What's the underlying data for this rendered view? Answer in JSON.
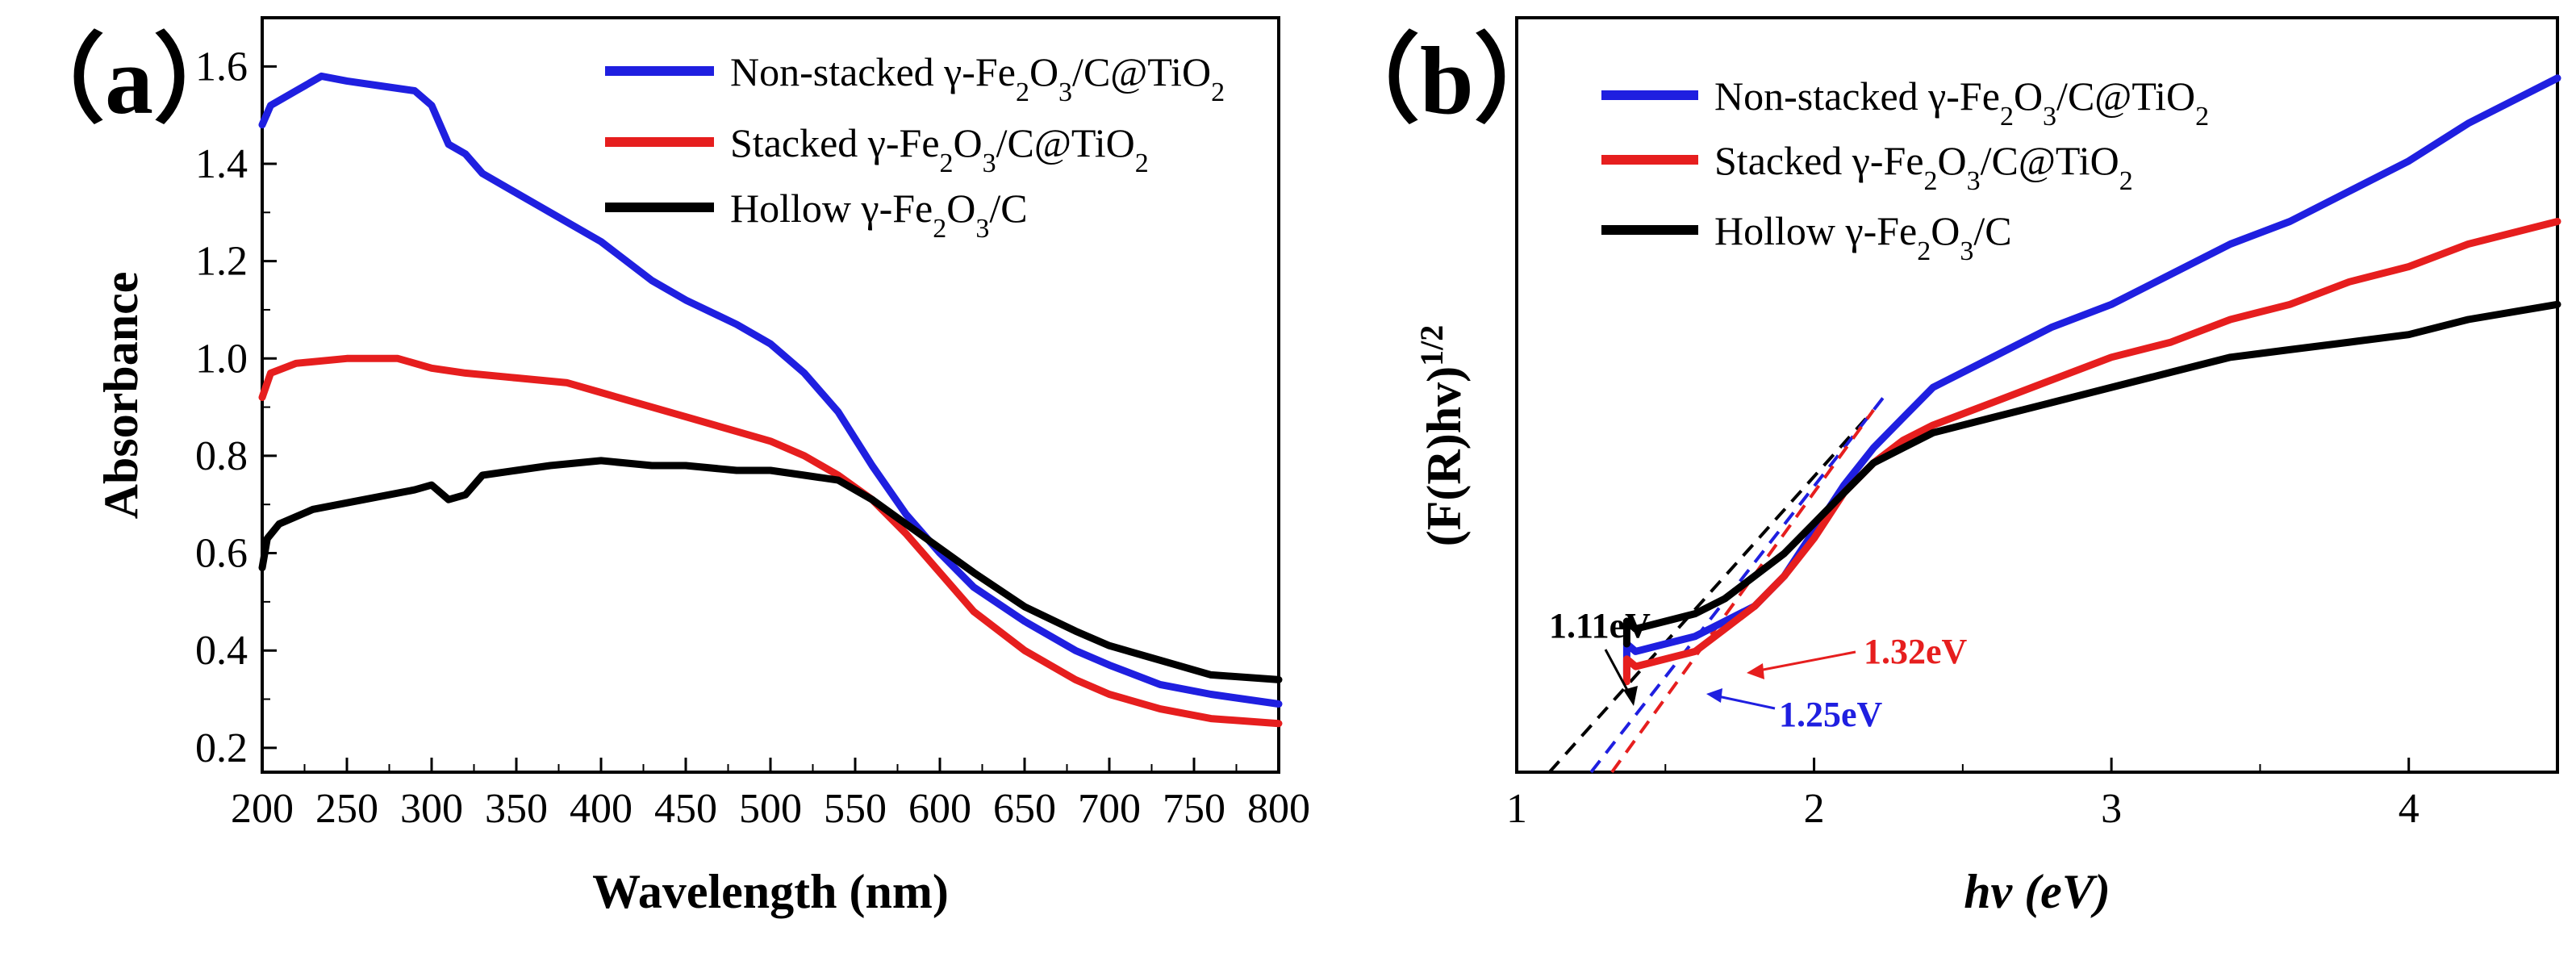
{
  "chart_data": [
    {
      "panel_label": "（a）",
      "type": "line",
      "xlabel": "Wavelength (nm)",
      "ylabel": "Absorbance",
      "xlim": [
        200,
        800
      ],
      "ylim": [
        0.15,
        1.7
      ],
      "xticks": [
        "200",
        "250",
        "300",
        "350",
        "400",
        "450",
        "500",
        "550",
        "600",
        "650",
        "700",
        "750",
        "800"
      ],
      "yticks": [
        "0.2",
        "0.4",
        "0.6",
        "0.8",
        "1.0",
        "1.2",
        "1.4",
        "1.6"
      ],
      "legend_position": "top-right",
      "series": [
        {
          "name": "Non-stacked γ-Fe₂O₃/C@TiO₂",
          "color": "#1f1fe0",
          "x": [
            200,
            205,
            220,
            235,
            250,
            270,
            290,
            300,
            310,
            320,
            330,
            350,
            370,
            400,
            430,
            450,
            480,
            500,
            520,
            540,
            560,
            580,
            600,
            620,
            650,
            680,
            700,
            730,
            760,
            800
          ],
          "y": [
            1.48,
            1.52,
            1.55,
            1.58,
            1.57,
            1.56,
            1.55,
            1.52,
            1.44,
            1.42,
            1.38,
            1.34,
            1.3,
            1.24,
            1.16,
            1.12,
            1.07,
            1.03,
            0.97,
            0.89,
            0.78,
            0.68,
            0.6,
            0.53,
            0.46,
            0.4,
            0.37,
            0.33,
            0.31,
            0.29
          ]
        },
        {
          "name": "Stacked γ-Fe₂O₃/C@TiO₂",
          "color": "#e61e1e",
          "x": [
            200,
            205,
            220,
            250,
            280,
            300,
            320,
            350,
            380,
            400,
            430,
            450,
            480,
            500,
            520,
            540,
            560,
            580,
            600,
            620,
            650,
            680,
            700,
            730,
            760,
            800
          ],
          "y": [
            0.92,
            0.97,
            0.99,
            1.0,
            1.0,
            0.98,
            0.97,
            0.96,
            0.95,
            0.93,
            0.9,
            0.88,
            0.85,
            0.83,
            0.8,
            0.76,
            0.71,
            0.64,
            0.56,
            0.48,
            0.4,
            0.34,
            0.31,
            0.28,
            0.26,
            0.25
          ]
        },
        {
          "name": "Hollow γ-Fe₂O₃/C",
          "color": "#000000",
          "x": [
            200,
            203,
            210,
            230,
            260,
            290,
            300,
            310,
            320,
            330,
            350,
            370,
            400,
            430,
            450,
            480,
            500,
            520,
            540,
            560,
            580,
            600,
            620,
            650,
            680,
            700,
            730,
            760,
            800
          ],
          "y": [
            0.57,
            0.63,
            0.66,
            0.69,
            0.71,
            0.73,
            0.74,
            0.71,
            0.72,
            0.76,
            0.77,
            0.78,
            0.79,
            0.78,
            0.78,
            0.77,
            0.77,
            0.76,
            0.75,
            0.71,
            0.66,
            0.61,
            0.56,
            0.49,
            0.44,
            0.41,
            0.38,
            0.35,
            0.34
          ]
        }
      ]
    },
    {
      "panel_label": "（b）",
      "type": "line",
      "xlabel": "hv (eV)",
      "ylabel": "(F(R)hv)^1/2",
      "xlim": [
        1.0,
        4.5
      ],
      "ylim": [
        0,
        1.0
      ],
      "xticks": [
        "1",
        "2",
        "3",
        "4"
      ],
      "legend_position": "top-left",
      "series": [
        {
          "name": "Non-stacked γ-Fe₂O₃/C@TiO₂",
          "color": "#1f1fe0",
          "x": [
            1.37,
            1.37,
            1.4,
            1.5,
            1.6,
            1.7,
            1.8,
            1.9,
            2.0,
            2.1,
            2.2,
            2.3,
            2.4,
            2.6,
            2.8,
            3.0,
            3.2,
            3.4,
            3.6,
            3.8,
            4.0,
            4.2,
            4.5
          ],
          "y": [
            0.13,
            0.17,
            0.16,
            0.17,
            0.18,
            0.2,
            0.22,
            0.26,
            0.32,
            0.38,
            0.43,
            0.47,
            0.51,
            0.55,
            0.59,
            0.62,
            0.66,
            0.7,
            0.73,
            0.77,
            0.81,
            0.86,
            0.92
          ]
        },
        {
          "name": "Stacked γ-Fe₂O₃/C@TiO₂",
          "color": "#e61e1e",
          "x": [
            1.37,
            1.37,
            1.4,
            1.5,
            1.6,
            1.7,
            1.8,
            1.9,
            2.0,
            2.1,
            2.2,
            2.3,
            2.4,
            2.6,
            2.8,
            3.0,
            3.2,
            3.4,
            3.6,
            3.8,
            4.0,
            4.2,
            4.5
          ],
          "y": [
            0.12,
            0.15,
            0.14,
            0.15,
            0.16,
            0.19,
            0.22,
            0.26,
            0.31,
            0.37,
            0.41,
            0.44,
            0.46,
            0.49,
            0.52,
            0.55,
            0.57,
            0.6,
            0.62,
            0.65,
            0.67,
            0.7,
            0.73
          ]
        },
        {
          "name": "Hollow γ-Fe₂O₃/C",
          "color": "#000000",
          "x": [
            1.37,
            1.37,
            1.4,
            1.5,
            1.6,
            1.7,
            1.8,
            1.9,
            2.0,
            2.1,
            2.2,
            2.3,
            2.4,
            2.6,
            2.8,
            3.0,
            3.2,
            3.4,
            3.6,
            3.8,
            4.0,
            4.2,
            4.5
          ],
          "y": [
            0.17,
            0.2,
            0.19,
            0.2,
            0.21,
            0.23,
            0.26,
            0.29,
            0.33,
            0.37,
            0.41,
            0.43,
            0.45,
            0.47,
            0.49,
            0.51,
            0.53,
            0.55,
            0.56,
            0.57,
            0.58,
            0.6,
            0.62
          ]
        }
      ],
      "tangents": [
        {
          "color": "#000000",
          "x1": 1.11,
          "x2": 2.2
        },
        {
          "color": "#1f1fe0",
          "x1": 1.25,
          "x2": 2.25
        },
        {
          "color": "#e61e1e",
          "x1": 1.32,
          "x2": 2.2
        }
      ],
      "annotations": [
        {
          "text": "1.11eV",
          "color": "#000000"
        },
        {
          "text": "1.32eV",
          "color": "#e61e1e"
        },
        {
          "text": "1.25eV",
          "color": "#1f1fe0"
        }
      ]
    }
  ]
}
